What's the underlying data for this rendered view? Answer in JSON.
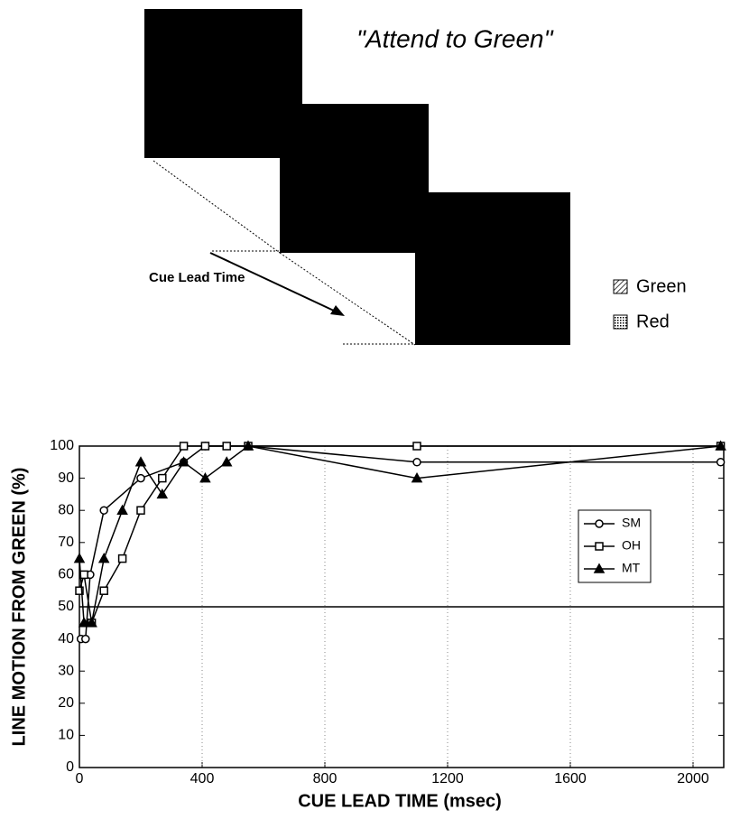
{
  "diagram": {
    "cue_text": "\"Attend to Green\"",
    "arrow_label": "Cue Lead Time",
    "legend": [
      "Green",
      "Red"
    ]
  },
  "chart_data": {
    "type": "line",
    "x_label": "CUE LEAD TIME (msec)",
    "y_label": "LINE MOTION FROM GREEN (%)",
    "xlim": [
      0,
      2100
    ],
    "ylim": [
      0,
      100
    ],
    "xticks": [
      0,
      400,
      800,
      1200,
      1600,
      2000
    ],
    "yticks": [
      0,
      10,
      20,
      30,
      40,
      50,
      60,
      70,
      80,
      90,
      100
    ],
    "grid": true,
    "reference": 50,
    "legend_position": "right",
    "series": [
      {
        "name": "SM",
        "color": "#000000",
        "marker": "circle",
        "x": [
          5,
          20,
          35,
          80,
          200,
          340,
          410,
          550,
          1100,
          2090
        ],
        "values": [
          40,
          40,
          60,
          80,
          90,
          95,
          100,
          100,
          95,
          95
        ]
      },
      {
        "name": "OH",
        "color": "#000000",
        "marker": "square",
        "x": [
          0,
          15,
          40,
          80,
          140,
          200,
          270,
          340,
          410,
          480,
          550,
          1100,
          2090
        ],
        "values": [
          55,
          60,
          45,
          55,
          65,
          80,
          90,
          100,
          100,
          100,
          100,
          100,
          100
        ]
      },
      {
        "name": "MT",
        "color": "#000000",
        "marker": "triangle",
        "x": [
          0,
          15,
          40,
          80,
          140,
          200,
          270,
          340,
          410,
          480,
          550,
          1100,
          2090
        ],
        "values": [
          65,
          45,
          45,
          65,
          80,
          95,
          85,
          95,
          90,
          95,
          100,
          90,
          100
        ]
      }
    ]
  }
}
